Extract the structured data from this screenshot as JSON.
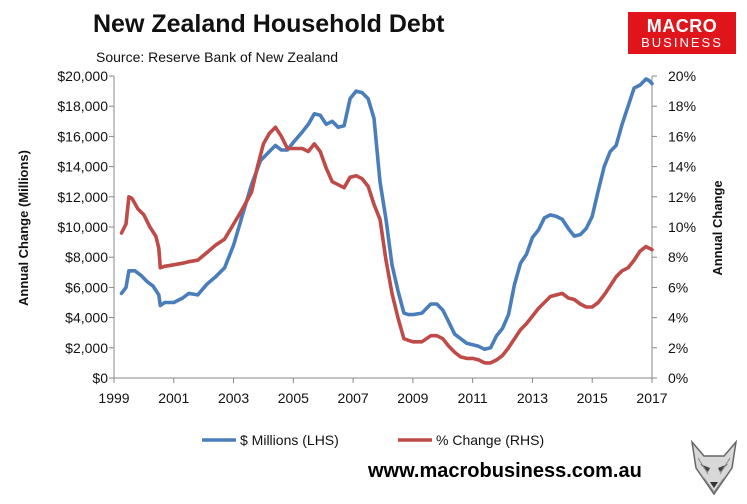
{
  "header": {
    "title": "New Zealand Household Debt",
    "source": "Source: Reserve Bank of New Zealand"
  },
  "logo": {
    "line1": "MACRO",
    "line2": "BUSINESS",
    "color": "#e0151b"
  },
  "footer": {
    "url": "www.macrobusiness.com.au"
  },
  "chart_data": {
    "type": "line",
    "title": "New Zealand Household Debt",
    "ylabel": "Annual Change (Millions)",
    "y2label": "Annual Change",
    "xlim": [
      1999,
      2017
    ],
    "ylim": [
      0,
      20000
    ],
    "y2lim": [
      0,
      20
    ],
    "x_ticks": [
      "1999",
      "2001",
      "2003",
      "2005",
      "2007",
      "2009",
      "2011",
      "2013",
      "2015",
      "2017"
    ],
    "y_ticks": [
      "$0",
      "$2,000",
      "$4,000",
      "$6,000",
      "$8,000",
      "$10,000",
      "$12,000",
      "$14,000",
      "$16,000",
      "$18,000",
      "$20,000"
    ],
    "y2_ticks": [
      "0%",
      "2%",
      "4%",
      "6%",
      "8%",
      "10%",
      "12%",
      "14%",
      "16%",
      "18%",
      "20%"
    ],
    "grid": false,
    "legend_position": "bottom",
    "series": [
      {
        "name": "$ Millions (LHS)",
        "axis": "left",
        "color": "#4a7ebb",
        "x": [
          1999.25,
          1999.4,
          1999.5,
          1999.7,
          1999.9,
          2000.1,
          2000.3,
          2000.5,
          2000.55,
          2000.7,
          2001.0,
          2001.3,
          2001.5,
          2001.8,
          2002.1,
          2002.4,
          2002.7,
          2003.0,
          2003.3,
          2003.6,
          2003.9,
          2004.2,
          2004.4,
          2004.6,
          2004.8,
          2005.0,
          2005.3,
          2005.5,
          2005.7,
          2005.9,
          2006.1,
          2006.3,
          2006.5,
          2006.7,
          2006.9,
          2007.1,
          2007.3,
          2007.5,
          2007.7,
          2007.9,
          2008.1,
          2008.3,
          2008.5,
          2008.7,
          2008.85,
          2009.0,
          2009.3,
          2009.6,
          2009.8,
          2010.0,
          2010.2,
          2010.4,
          2010.6,
          2010.8,
          2011.0,
          2011.2,
          2011.4,
          2011.6,
          2011.8,
          2012.0,
          2012.2,
          2012.4,
          2012.6,
          2012.8,
          2013.0,
          2013.2,
          2013.4,
          2013.6,
          2013.8,
          2014.0,
          2014.2,
          2014.4,
          2014.6,
          2014.8,
          2015.0,
          2015.2,
          2015.4,
          2015.6,
          2015.8,
          2016.0,
          2016.2,
          2016.4,
          2016.6,
          2016.8,
          2016.9,
          2017.0
        ],
        "values": [
          5600,
          6000,
          7100,
          7100,
          6800,
          6400,
          6100,
          5500,
          4800,
          5000,
          5000,
          5300,
          5600,
          5500,
          6200,
          6700,
          7300,
          8800,
          10800,
          12800,
          14400,
          15000,
          15400,
          15100,
          15100,
          15600,
          16300,
          16800,
          17500,
          17400,
          16800,
          17000,
          16600,
          16700,
          18500,
          19000,
          18900,
          18500,
          17200,
          13000,
          10500,
          7500,
          5800,
          4300,
          4200,
          4200,
          4300,
          4900,
          4900,
          4500,
          3700,
          2900,
          2600,
          2300,
          2200,
          2100,
          1900,
          2000,
          2800,
          3300,
          4200,
          6200,
          7600,
          8200,
          9300,
          9800,
          10600,
          10800,
          10700,
          10500,
          9900,
          9400,
          9500,
          9900,
          10700,
          12400,
          14000,
          15000,
          15400,
          16800,
          18000,
          19200,
          19400,
          19800,
          19700,
          19500
        ]
      },
      {
        "name": "% Change (RHS)",
        "axis": "right",
        "color": "#be4b48",
        "x": [
          1999.25,
          1999.4,
          1999.5,
          1999.6,
          1999.8,
          2000.0,
          2000.2,
          2000.4,
          2000.5,
          2000.55,
          2000.7,
          2001.0,
          2001.3,
          2001.5,
          2001.8,
          2002.1,
          2002.4,
          2002.7,
          2003.0,
          2003.3,
          2003.6,
          2003.8,
          2004.0,
          2004.2,
          2004.4,
          2004.6,
          2004.8,
          2005.0,
          2005.3,
          2005.5,
          2005.7,
          2005.9,
          2006.1,
          2006.3,
          2006.5,
          2006.7,
          2006.9,
          2007.1,
          2007.3,
          2007.5,
          2007.7,
          2007.9,
          2008.1,
          2008.3,
          2008.5,
          2008.7,
          2008.85,
          2009.0,
          2009.3,
          2009.6,
          2009.8,
          2010.0,
          2010.2,
          2010.4,
          2010.6,
          2010.8,
          2011.0,
          2011.2,
          2011.4,
          2011.6,
          2011.8,
          2012.0,
          2012.2,
          2012.4,
          2012.6,
          2012.8,
          2013.0,
          2013.2,
          2013.4,
          2013.6,
          2013.8,
          2014.0,
          2014.2,
          2014.4,
          2014.6,
          2014.8,
          2015.0,
          2015.2,
          2015.4,
          2015.6,
          2015.8,
          2016.0,
          2016.2,
          2016.4,
          2016.6,
          2016.8,
          2016.9,
          2017.0
        ],
        "values": [
          9.6,
          10.2,
          12.0,
          11.9,
          11.2,
          10.8,
          10.0,
          9.4,
          8.6,
          7.3,
          7.4,
          7.5,
          7.6,
          7.7,
          7.8,
          8.3,
          8.8,
          9.2,
          10.2,
          11.2,
          12.3,
          14.0,
          15.5,
          16.2,
          16.6,
          16.0,
          15.2,
          15.2,
          15.2,
          15.0,
          15.5,
          15.0,
          13.9,
          13.0,
          12.8,
          12.6,
          13.3,
          13.4,
          13.2,
          12.7,
          11.5,
          10.5,
          7.8,
          5.6,
          4.0,
          2.6,
          2.5,
          2.4,
          2.4,
          2.8,
          2.8,
          2.6,
          2.1,
          1.7,
          1.4,
          1.3,
          1.3,
          1.2,
          1.0,
          1.0,
          1.2,
          1.5,
          2.0,
          2.6,
          3.2,
          3.6,
          4.1,
          4.6,
          5.0,
          5.4,
          5.5,
          5.6,
          5.3,
          5.2,
          4.9,
          4.7,
          4.7,
          5.0,
          5.5,
          6.1,
          6.7,
          7.1,
          7.3,
          7.8,
          8.4,
          8.7,
          8.6,
          8.5
        ]
      }
    ]
  }
}
